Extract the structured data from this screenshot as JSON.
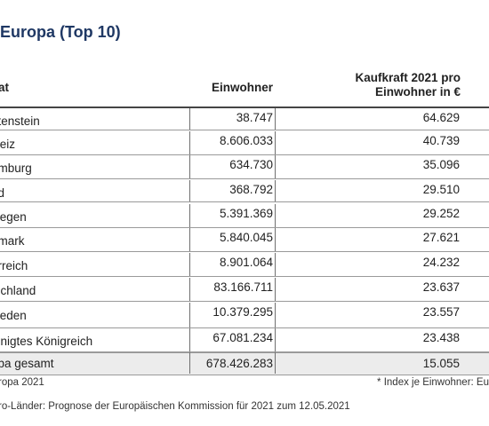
{
  "title": "Europa (Top 10)",
  "table": {
    "headers": {
      "state": "at",
      "population": "Einwohner",
      "purchasing_power_line1": "Kaufkraft 2021 pro",
      "purchasing_power_line2": "Einwohner in €"
    },
    "rows": [
      {
        "state": "htenstein",
        "population": "38.747",
        "purchasing_power": "64.629"
      },
      {
        "state": "weiz",
        "population": "8.606.033",
        "purchasing_power": "40.739"
      },
      {
        "state": "emburg",
        "population": "634.730",
        "purchasing_power": "35.096"
      },
      {
        "state": "nd",
        "population": "368.792",
        "purchasing_power": "29.510"
      },
      {
        "state": "wegen",
        "population": "5.391.369",
        "purchasing_power": "29.252"
      },
      {
        "state": "emark",
        "population": "5.840.045",
        "purchasing_power": "27.621"
      },
      {
        "state": "erreich",
        "population": "8.901.064",
        "purchasing_power": "24.232"
      },
      {
        "state": "tschland",
        "population": "83.166.711",
        "purchasing_power": "23.637"
      },
      {
        "state": "weden",
        "population": "10.379.295",
        "purchasing_power": "23.557"
      },
      {
        "state": "einigtes Königreich",
        "population": "67.081.234",
        "purchasing_power": "23.438"
      }
    ],
    "total": {
      "state": "opa gesamt",
      "population": "678.426.283",
      "purchasing_power": "15.055"
    }
  },
  "footnotes": {
    "source": "ropa 2021",
    "index_note": "* Index je Einwohner: Eu",
    "euro_note": "ro-Länder: Prognose der Europäischen Kommission für 2021 zum 12.05.2021"
  }
}
